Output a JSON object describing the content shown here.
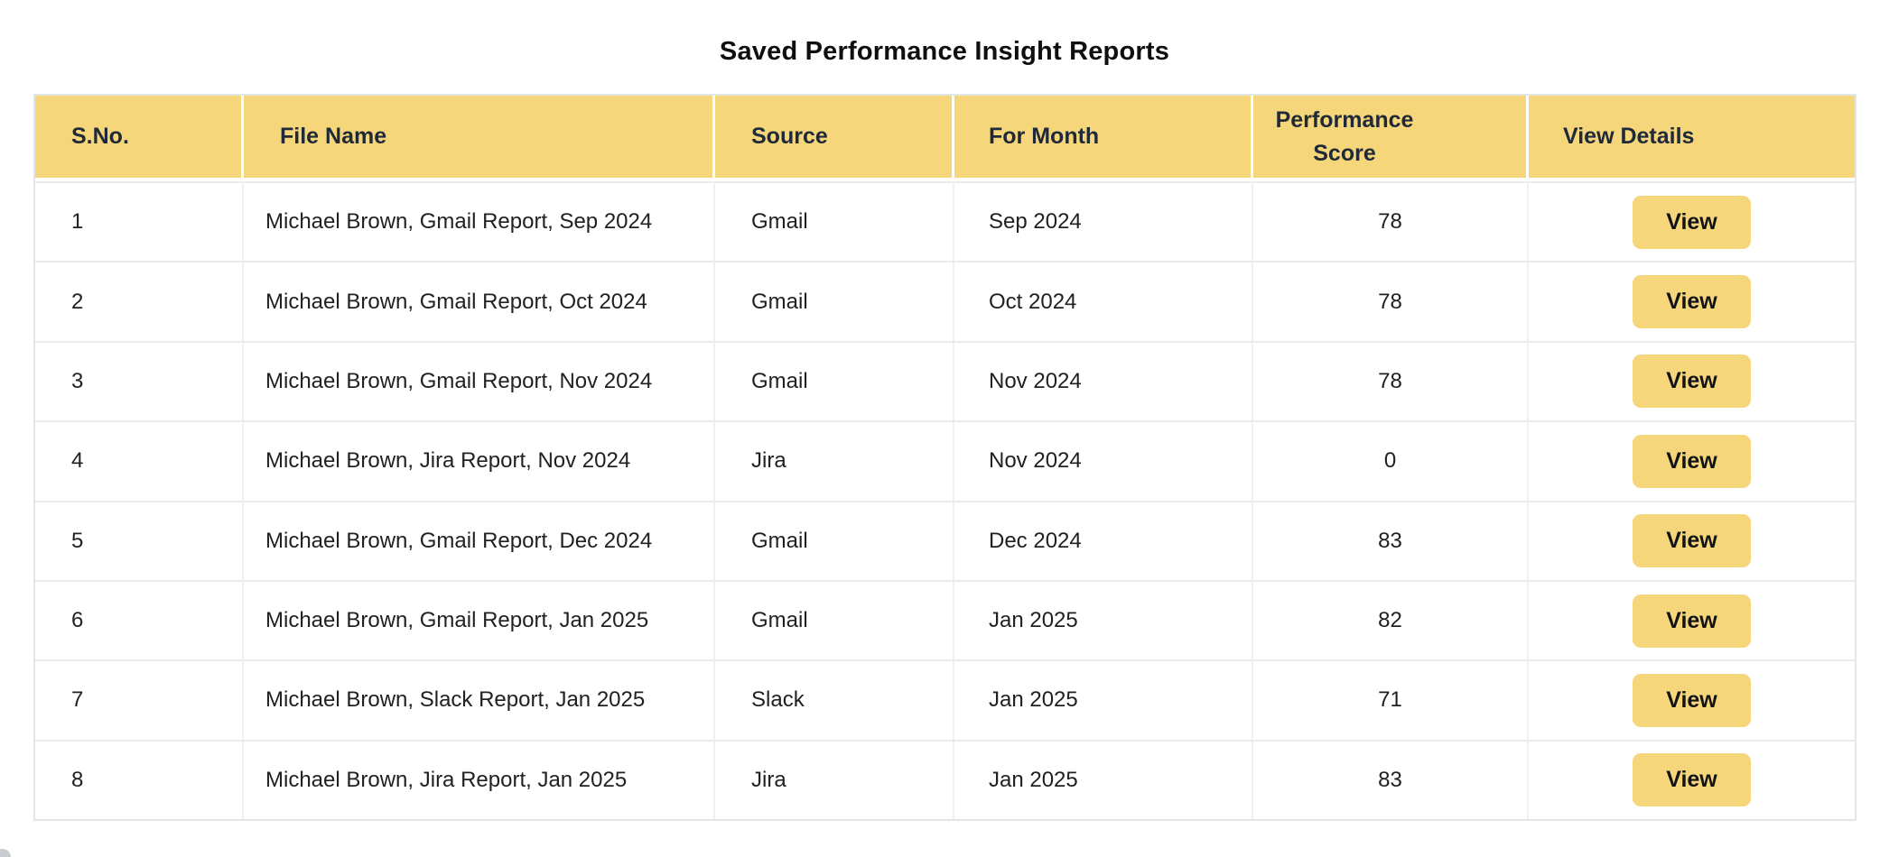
{
  "page": {
    "title": "Saved Performance Insight Reports"
  },
  "colors": {
    "header_bg": "#f6d67b",
    "header_text": "#1f2937",
    "button_bg": "#f6d67b",
    "row_border": "#e9ebee"
  },
  "table": {
    "columns": [
      {
        "key": "sno",
        "label": "S.No."
      },
      {
        "key": "file_name",
        "label": "File Name"
      },
      {
        "key": "source",
        "label": "Source"
      },
      {
        "key": "for_month",
        "label": "For Month"
      },
      {
        "key": "performance_score",
        "label": "Performance Score"
      },
      {
        "key": "view_details",
        "label": "View Details"
      }
    ],
    "view_button_label": "View",
    "rows": [
      {
        "sno": "1",
        "file_name": "Michael Brown, Gmail Report, Sep 2024",
        "source": "Gmail",
        "for_month": "Sep 2024",
        "performance_score": "78"
      },
      {
        "sno": "2",
        "file_name": "Michael Brown, Gmail Report, Oct 2024",
        "source": "Gmail",
        "for_month": "Oct 2024",
        "performance_score": "78"
      },
      {
        "sno": "3",
        "file_name": "Michael Brown, Gmail Report, Nov 2024",
        "source": "Gmail",
        "for_month": "Nov 2024",
        "performance_score": "78"
      },
      {
        "sno": "4",
        "file_name": "Michael Brown, Jira Report, Nov 2024",
        "source": "Jira",
        "for_month": "Nov 2024",
        "performance_score": "0"
      },
      {
        "sno": "5",
        "file_name": "Michael Brown, Gmail Report, Dec 2024",
        "source": "Gmail",
        "for_month": "Dec 2024",
        "performance_score": "83"
      },
      {
        "sno": "6",
        "file_name": "Michael Brown, Gmail Report, Jan 2025",
        "source": "Gmail",
        "for_month": "Jan 2025",
        "performance_score": "82"
      },
      {
        "sno": "7",
        "file_name": "Michael Brown, Slack Report, Jan 2025",
        "source": "Slack",
        "for_month": "Jan 2025",
        "performance_score": "71"
      },
      {
        "sno": "8",
        "file_name": "Michael Brown, Jira Report, Jan 2025",
        "source": "Jira",
        "for_month": "Jan 2025",
        "performance_score": "83"
      }
    ]
  }
}
